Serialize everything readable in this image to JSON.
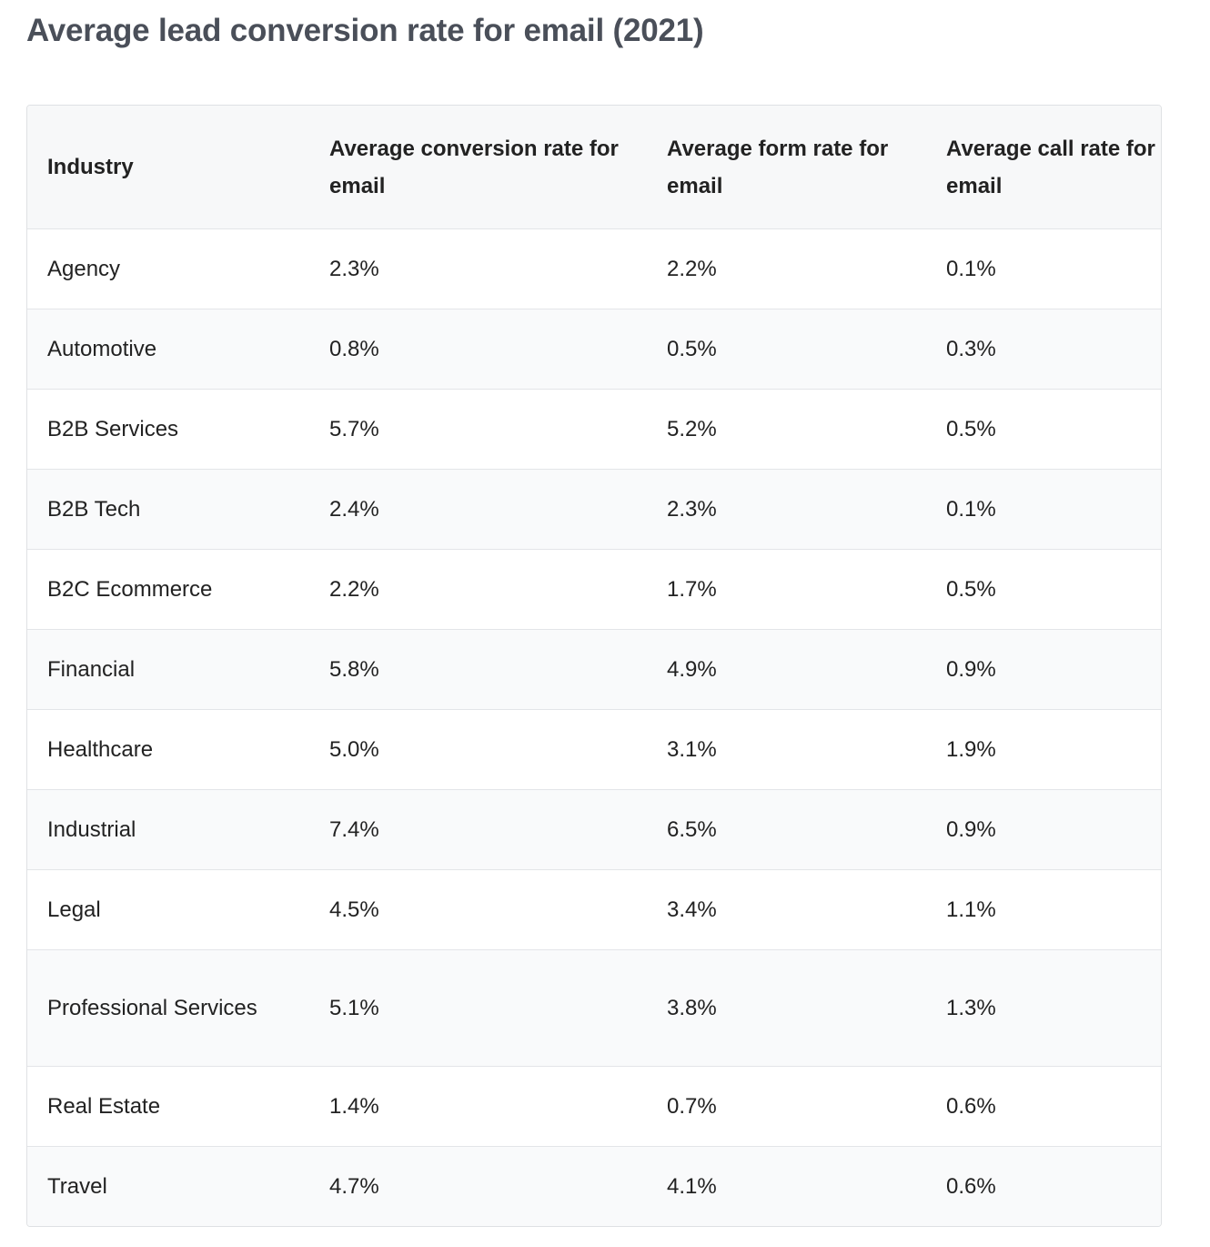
{
  "title": "Average lead conversion rate for email (2021)",
  "table": {
    "headers": [
      "Industry",
      "Average conversion rate for email",
      "Average form rate for email",
      "Average call rate for email"
    ],
    "rows": [
      [
        "Agency",
        "2.3%",
        "2.2%",
        "0.1%"
      ],
      [
        "Automotive",
        "0.8%",
        "0.5%",
        "0.3%"
      ],
      [
        "B2B Services",
        "5.7%",
        "5.2%",
        "0.5%"
      ],
      [
        "B2B Tech",
        "2.4%",
        "2.3%",
        "0.1%"
      ],
      [
        "B2C Ecommerce",
        "2.2%",
        "1.7%",
        "0.5%"
      ],
      [
        "Financial",
        "5.8%",
        "4.9%",
        "0.9%"
      ],
      [
        "Healthcare",
        "5.0%",
        "3.1%",
        "1.9%"
      ],
      [
        "Industrial",
        "7.4%",
        "6.5%",
        "0.9%"
      ],
      [
        "Legal",
        "4.5%",
        "3.4%",
        "1.1%"
      ],
      [
        "Professional Services",
        "5.1%",
        "3.8%",
        "1.3%"
      ],
      [
        "Real Estate",
        "1.4%",
        "0.7%",
        "0.6%"
      ],
      [
        "Travel",
        "4.7%",
        "4.1%",
        "0.6%"
      ]
    ]
  }
}
